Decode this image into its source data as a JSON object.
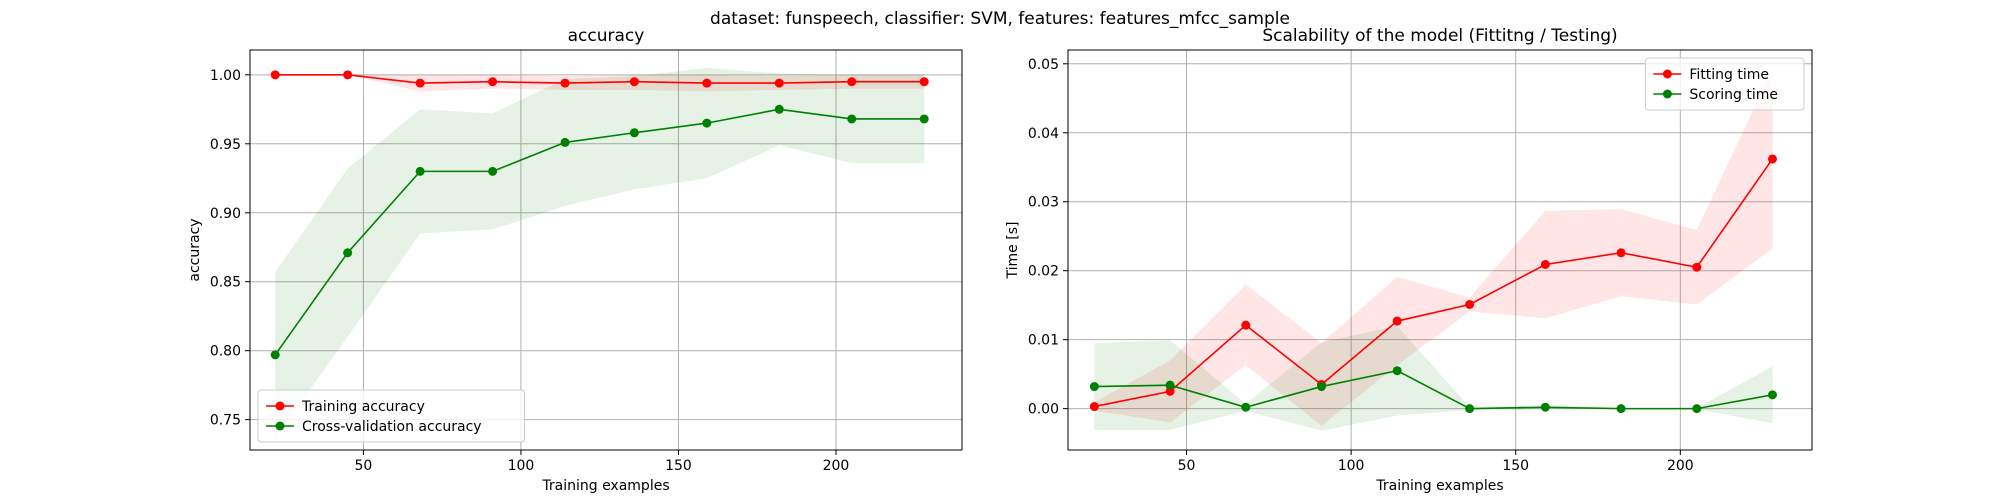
{
  "figure": {
    "suptitle": "dataset: funspeech, classifier: SVM, features: features_mfcc_sample"
  },
  "chart_data": [
    {
      "type": "line",
      "title": "accuracy",
      "xlabel": "Training examples",
      "ylabel": "accuracy",
      "xlim": [
        14,
        240
      ],
      "ylim": [
        0.728,
        1.018
      ],
      "xticks": [
        50,
        100,
        150,
        200
      ],
      "yticks": [
        0.75,
        0.8,
        0.85,
        0.9,
        0.95,
        1.0
      ],
      "ytick_format": 2,
      "grid": true,
      "legend_position": "lower-left",
      "x": [
        22,
        45,
        68,
        91,
        114,
        136,
        159,
        182,
        205,
        228
      ],
      "series": [
        {
          "name": "Training accuracy",
          "color": "#ff0000",
          "values": [
            1.0,
            1.0,
            0.994,
            0.995,
            0.994,
            0.995,
            0.994,
            0.994,
            0.995,
            0.995
          ],
          "band_lower": [
            1.0,
            1.0,
            0.988,
            0.99,
            0.989,
            0.989,
            0.988,
            0.989,
            0.99,
            0.99
          ],
          "band_upper": [
            1.0,
            1.0,
            1.0,
            1.0,
            0.999,
            1.0,
            1.0,
            0.999,
            1.0,
            1.0
          ]
        },
        {
          "name": "Cross-validation accuracy",
          "color": "#008000",
          "values": [
            0.797,
            0.871,
            0.93,
            0.93,
            0.951,
            0.958,
            0.965,
            0.975,
            0.968,
            0.968
          ],
          "band_lower": [
            0.737,
            0.81,
            0.885,
            0.888,
            0.905,
            0.917,
            0.925,
            0.949,
            0.936,
            0.936
          ],
          "band_upper": [
            0.857,
            0.932,
            0.975,
            0.972,
            0.997,
            0.999,
            1.005,
            1.001,
            1.0,
            1.0
          ]
        }
      ]
    },
    {
      "type": "line",
      "title": "Scalability of the model (Fittitng / Testing)",
      "xlabel": "Training examples",
      "ylabel": "Time [s]",
      "xlim": [
        14,
        240
      ],
      "ylim": [
        -0.006,
        0.052
      ],
      "xticks": [
        50,
        100,
        150,
        200
      ],
      "yticks": [
        0.0,
        0.01,
        0.02,
        0.03,
        0.04,
        0.05
      ],
      "ytick_format": 2,
      "grid": true,
      "legend_position": "upper-right",
      "x": [
        22,
        45,
        68,
        91,
        114,
        136,
        159,
        182,
        205,
        228
      ],
      "series": [
        {
          "name": "Fitting time",
          "color": "#ff0000",
          "values": [
            0.0003,
            0.0025,
            0.0121,
            0.0035,
            0.0127,
            0.0151,
            0.0209,
            0.0226,
            0.0205,
            0.0362
          ],
          "band_lower": [
            -0.0003,
            -0.002,
            0.0063,
            -0.0025,
            0.0063,
            0.0141,
            0.0131,
            0.0163,
            0.0151,
            0.0232
          ],
          "band_upper": [
            0.0009,
            0.007,
            0.018,
            0.0095,
            0.0191,
            0.0161,
            0.0287,
            0.0289,
            0.0259,
            0.0492
          ]
        },
        {
          "name": "Scoring time",
          "color": "#008000",
          "values": [
            0.0032,
            0.0034,
            0.0002,
            0.0032,
            0.0055,
            0.0,
            0.0002,
            0.0,
            0.0,
            0.002
          ],
          "band_lower": [
            -0.0031,
            -0.0031,
            -0.0003,
            -0.0032,
            -0.001,
            -0.0002,
            -0.0001,
            -0.0001,
            -0.0001,
            -0.0021
          ],
          "band_upper": [
            0.0095,
            0.0099,
            0.0007,
            0.0096,
            0.012,
            0.0002,
            0.0005,
            0.0001,
            0.0001,
            0.0061
          ]
        }
      ]
    }
  ]
}
